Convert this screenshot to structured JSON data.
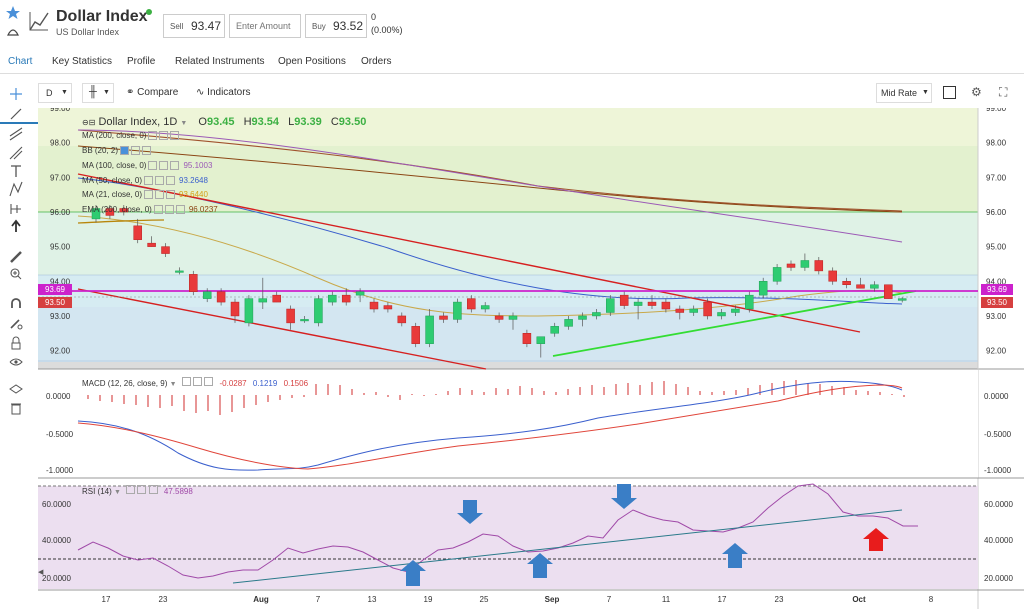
{
  "instrument": {
    "name": "Dollar Index",
    "subtitle": "US Dollar Index",
    "sell_label": "Sell",
    "sell_price": "93.47",
    "amount_placeholder": "Enter Amount",
    "buy_label": "Buy",
    "buy_price": "93.52",
    "change": "0",
    "change_pct": "(0.00%)"
  },
  "tabs": [
    "Chart",
    "Key Statistics",
    "Profile",
    "Related Instruments",
    "Open Positions",
    "Orders"
  ],
  "toolbar": {
    "interval": "D",
    "compare": "Compare",
    "indicators": "Indicators",
    "rate_mode": "Mid Rate"
  },
  "price_panel": {
    "header": {
      "name": "Dollar Index, 1D",
      "o_label": "O",
      "o": "93.45",
      "h_label": "H",
      "h": "93.54",
      "l_label": "L",
      "l": "93.39",
      "c_label": "C",
      "c": "93.50"
    },
    "legend": [
      {
        "label": "MA (200, close, 0)",
        "value": "",
        "color": "#a0522d"
      },
      {
        "label": "BB (20, 2)",
        "value": "",
        "color": "#888888"
      },
      {
        "label": "MA (100, close, 0)",
        "value": "95.1003",
        "color": "#9b59b6"
      },
      {
        "label": "MA (50, close, 0)",
        "value": "93.2648",
        "color": "#3a5fcd"
      },
      {
        "label": "MA (21, close, 0)",
        "value": "93.6440",
        "color": "#d4a017"
      },
      {
        "label": "EMA (200, close, 0)",
        "value": "96.0237",
        "color": "#8b4513"
      }
    ],
    "y_ticks": [
      "99.00",
      "98.00",
      "97.00",
      "96.00",
      "95.00",
      "94.00",
      "93.00",
      "92.00"
    ],
    "bid_tag": "93.69",
    "ask_tag": "93.50"
  },
  "macd_panel": {
    "label": "MACD (12, 26, close, 9)",
    "v1": "-0.0287",
    "v2": "0.1219",
    "v3": "0.1506",
    "y_ticks": [
      "0.0000",
      "-0.5000",
      "-1.0000"
    ]
  },
  "rsi_panel": {
    "label": "RSI (14)",
    "value": "47.5898",
    "y_ticks": [
      "60.0000",
      "40.0000",
      "20.0000"
    ]
  },
  "x_ticks": [
    "17",
    "23",
    "Aug",
    "7",
    "13",
    "19",
    "25",
    "Sep",
    "7",
    "11",
    "17",
    "23",
    "Oct",
    "8"
  ],
  "chart_data": {
    "type": "candlestick",
    "ylim": [
      91.7,
      99.0
    ],
    "candles": [
      {
        "o": 95.8,
        "h": 96.2,
        "l": 95.7,
        "c": 96.1
      },
      {
        "o": 96.1,
        "h": 96.2,
        "l": 95.8,
        "c": 95.9
      },
      {
        "o": 96.1,
        "h": 96.2,
        "l": 95.9,
        "c": 96.0
      },
      {
        "o": 95.6,
        "h": 95.8,
        "l": 95.1,
        "c": 95.2
      },
      {
        "o": 95.1,
        "h": 95.3,
        "l": 95.0,
        "c": 95.0
      },
      {
        "o": 95.0,
        "h": 95.1,
        "l": 94.7,
        "c": 94.8
      },
      {
        "o": 94.3,
        "h": 94.4,
        "l": 94.2,
        "c": 94.3
      },
      {
        "o": 94.2,
        "h": 94.3,
        "l": 93.6,
        "c": 93.7
      },
      {
        "o": 93.5,
        "h": 93.8,
        "l": 93.4,
        "c": 93.7
      },
      {
        "o": 93.7,
        "h": 93.8,
        "l": 93.3,
        "c": 93.4
      },
      {
        "o": 93.4,
        "h": 93.5,
        "l": 92.8,
        "c": 93.0
      },
      {
        "o": 92.8,
        "h": 93.6,
        "l": 92.7,
        "c": 93.5
      },
      {
        "o": 93.4,
        "h": 94.1,
        "l": 93.2,
        "c": 93.5
      },
      {
        "o": 93.6,
        "h": 93.7,
        "l": 93.4,
        "c": 93.4
      },
      {
        "o": 93.2,
        "h": 93.3,
        "l": 92.6,
        "c": 92.8
      },
      {
        "o": 92.9,
        "h": 93.0,
        "l": 92.8,
        "c": 92.9
      },
      {
        "o": 92.8,
        "h": 93.6,
        "l": 92.7,
        "c": 93.5
      },
      {
        "o": 93.4,
        "h": 93.7,
        "l": 93.3,
        "c": 93.6
      },
      {
        "o": 93.6,
        "h": 93.8,
        "l": 93.3,
        "c": 93.4
      },
      {
        "o": 93.6,
        "h": 93.8,
        "l": 93.4,
        "c": 93.7
      },
      {
        "o": 93.4,
        "h": 93.5,
        "l": 93.1,
        "c": 93.2
      },
      {
        "o": 93.3,
        "h": 93.4,
        "l": 93.1,
        "c": 93.2
      },
      {
        "o": 93.0,
        "h": 93.1,
        "l": 92.7,
        "c": 92.8
      },
      {
        "o": 92.7,
        "h": 92.8,
        "l": 92.1,
        "c": 92.2
      },
      {
        "o": 92.2,
        "h": 93.2,
        "l": 92.1,
        "c": 93.0
      },
      {
        "o": 93.0,
        "h": 93.1,
        "l": 92.8,
        "c": 92.9
      },
      {
        "o": 92.9,
        "h": 93.5,
        "l": 92.8,
        "c": 93.4
      },
      {
        "o": 93.5,
        "h": 93.6,
        "l": 93.1,
        "c": 93.2
      },
      {
        "o": 93.2,
        "h": 93.4,
        "l": 93.1,
        "c": 93.3
      },
      {
        "o": 93.0,
        "h": 93.1,
        "l": 92.8,
        "c": 92.9
      },
      {
        "o": 92.9,
        "h": 93.1,
        "l": 92.6,
        "c": 93.0
      },
      {
        "o": 92.5,
        "h": 92.6,
        "l": 92.1,
        "c": 92.2
      },
      {
        "o": 92.2,
        "h": 92.4,
        "l": 91.8,
        "c": 92.4
      },
      {
        "o": 92.5,
        "h": 92.8,
        "l": 92.4,
        "c": 92.7
      },
      {
        "o": 92.7,
        "h": 93.0,
        "l": 92.6,
        "c": 92.9
      },
      {
        "o": 92.9,
        "h": 93.1,
        "l": 92.7,
        "c": 93.0
      },
      {
        "o": 93.0,
        "h": 93.2,
        "l": 92.9,
        "c": 93.1
      },
      {
        "o": 93.1,
        "h": 93.6,
        "l": 93.0,
        "c": 93.5
      },
      {
        "o": 93.6,
        "h": 93.7,
        "l": 93.2,
        "c": 93.3
      },
      {
        "o": 93.3,
        "h": 93.5,
        "l": 92.9,
        "c": 93.4
      },
      {
        "o": 93.4,
        "h": 93.6,
        "l": 93.2,
        "c": 93.3
      },
      {
        "o": 93.4,
        "h": 93.5,
        "l": 93.1,
        "c": 93.2
      },
      {
        "o": 93.2,
        "h": 93.3,
        "l": 92.9,
        "c": 93.1
      },
      {
        "o": 93.1,
        "h": 93.3,
        "l": 93.0,
        "c": 93.2
      },
      {
        "o": 93.4,
        "h": 93.5,
        "l": 92.9,
        "c": 93.0
      },
      {
        "o": 93.0,
        "h": 93.2,
        "l": 92.9,
        "c": 93.1
      },
      {
        "o": 93.1,
        "h": 93.3,
        "l": 93.0,
        "c": 93.2
      },
      {
        "o": 93.2,
        "h": 93.7,
        "l": 93.1,
        "c": 93.6
      },
      {
        "o": 93.6,
        "h": 94.1,
        "l": 93.5,
        "c": 94.0
      },
      {
        "o": 94.0,
        "h": 94.5,
        "l": 93.9,
        "c": 94.4
      },
      {
        "o": 94.5,
        "h": 94.6,
        "l": 94.3,
        "c": 94.4
      },
      {
        "o": 94.4,
        "h": 94.8,
        "l": 94.3,
        "c": 94.6
      },
      {
        "o": 94.6,
        "h": 94.7,
        "l": 94.2,
        "c": 94.3
      },
      {
        "o": 94.3,
        "h": 94.4,
        "l": 93.9,
        "c": 94.0
      },
      {
        "o": 94.0,
        "h": 94.1,
        "l": 93.8,
        "c": 93.9
      },
      {
        "o": 93.9,
        "h": 94.1,
        "l": 93.8,
        "c": 93.8
      },
      {
        "o": 93.8,
        "h": 94.0,
        "l": 93.7,
        "c": 93.9
      },
      {
        "o": 93.9,
        "h": 93.9,
        "l": 93.5,
        "c": 93.5
      },
      {
        "o": 93.45,
        "h": 93.54,
        "l": 93.39,
        "c": 93.5
      }
    ]
  }
}
